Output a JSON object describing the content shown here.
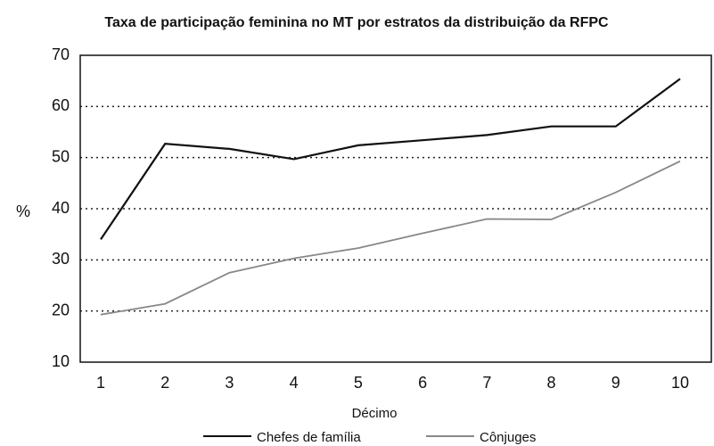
{
  "chart_data": {
    "type": "line",
    "title": "Taxa de participação feminina no MT por estratos da distribuição da RFPC",
    "x_label": "Décimo",
    "y_label": "%",
    "categories": [
      "1",
      "2",
      "3",
      "4",
      "5",
      "6",
      "7",
      "8",
      "9",
      "10"
    ],
    "series": [
      {
        "name": "Chefes de família",
        "color": "#111111",
        "values": [
          34,
          52.7,
          51.7,
          49.7,
          52.4,
          53.4,
          54.4,
          56.1,
          56.1,
          65.4
        ]
      },
      {
        "name": "Cônjuges",
        "color": "#888888",
        "values": [
          19.3,
          21.4,
          27.5,
          30.3,
          32.3,
          35.2,
          38,
          37.9,
          43.2,
          49.3
        ]
      }
    ],
    "ylim": [
      10,
      70
    ],
    "yticks": [
      10,
      20,
      30,
      40,
      50,
      60,
      70
    ],
    "grid": true
  }
}
